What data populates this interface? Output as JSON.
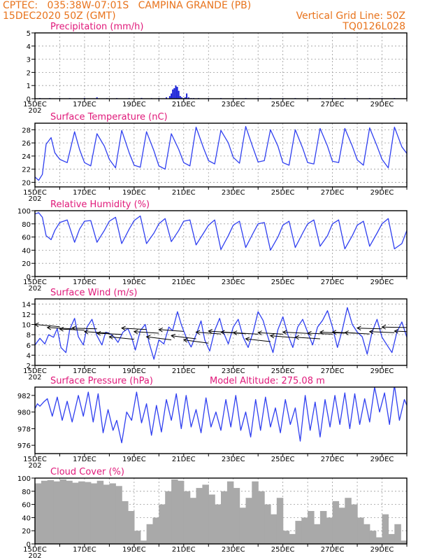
{
  "header": {
    "left_line1": "CPTEC:   035:38W-07:01S   CAMPINA GRANDE (PB)",
    "left_line2": "15DEC2020 50Z (GMT)",
    "right_line1": "Vertical Grid Line: 50Z",
    "right_line2": "TQ0126L028"
  },
  "colors": {
    "header": "#e8731c",
    "title": "#e0197a",
    "line": "#2f3ff0",
    "bar": "#1a22d8",
    "cloud": "#a9a9a9",
    "arrow": "#000000"
  },
  "x_axis": {
    "labels": [
      "15DEC",
      "17DEC",
      "19DEC",
      "21DEC",
      "23DEC",
      "25DEC",
      "27DEC",
      "29DEC"
    ],
    "year_fragment": "202"
  },
  "chart_data": [
    {
      "type": "bar",
      "title": "Precipitation (mm/h)",
      "ylim": [
        0,
        5
      ],
      "yticks": [
        "0",
        "1",
        "2",
        "3",
        "4",
        "5"
      ],
      "grid": true,
      "x_unit": "days since 15DEC",
      "x": [
        0.2,
        0.6,
        1.0,
        1.4,
        2.0,
        2.5,
        2.9,
        3.3,
        3.8,
        4.3,
        4.7,
        5.0,
        5.3,
        5.44,
        5.5,
        5.56,
        5.62,
        5.68,
        5.74,
        5.8,
        5.86,
        5.92,
        6.0,
        6.06,
        6.12,
        6.2,
        6.3,
        6.4,
        6.6,
        7.0,
        7.5,
        8.0,
        8.5,
        9.0,
        9.5,
        10.0,
        10.5,
        11.0,
        11.5,
        12.0,
        12.5,
        13.0,
        13.5,
        14.0,
        14.5
      ],
      "values": [
        0.05,
        0.05,
        0.04,
        0.05,
        0.06,
        0.1,
        0.04,
        0.05,
        0.05,
        0.06,
        0.04,
        0.05,
        0.1,
        0.2,
        0.4,
        0.7,
        0.8,
        1.0,
        0.9,
        0.6,
        0.2,
        0.1,
        0.05,
        0.1,
        0.4,
        0.1,
        0.05,
        0.05,
        0.05,
        0.04,
        0.05,
        0.04,
        0.05,
        0.04,
        0.05,
        0.04,
        0.05,
        0.04,
        0.05,
        0.04,
        0.05,
        0.04,
        0.05,
        0.04,
        0.05
      ]
    },
    {
      "type": "line",
      "title": "Surface Temperature (nC)",
      "ylim": [
        19.3,
        29.0
      ],
      "yticks": [
        "20",
        "22",
        "24",
        "26",
        "28"
      ],
      "grid": true,
      "x_unit": "days since 15DEC",
      "x": [
        0.0,
        0.15,
        0.3,
        0.45,
        0.65,
        0.8,
        1.0,
        1.3,
        1.6,
        1.8,
        2.0,
        2.25,
        2.5,
        2.8,
        3.0,
        3.25,
        3.5,
        3.8,
        4.0,
        4.25,
        4.5,
        4.8,
        5.0,
        5.25,
        5.5,
        5.8,
        6.0,
        6.25,
        6.5,
        6.8,
        7.0,
        7.25,
        7.5,
        7.8,
        8.0,
        8.25,
        8.5,
        8.8,
        9.0,
        9.25,
        9.5,
        9.8,
        10.0,
        10.25,
        10.5,
        10.8,
        11.0,
        11.25,
        11.5,
        11.8,
        12.0,
        12.25,
        12.5,
        12.8,
        13.0,
        13.25,
        13.5,
        13.8,
        14.0,
        14.25,
        14.5,
        14.8,
        15.0
      ],
      "values": [
        20.8,
        20.3,
        21.2,
        25.8,
        26.8,
        24.5,
        23.5,
        23.0,
        27.7,
        25.0,
        23.0,
        22.5,
        27.4,
        25.5,
        23.5,
        22.2,
        27.9,
        24.5,
        22.6,
        22.3,
        27.7,
        24.8,
        22.5,
        22.0,
        27.4,
        25.0,
        23.0,
        22.5,
        28.4,
        25.2,
        23.3,
        22.8,
        27.9,
        26.0,
        23.8,
        22.9,
        28.5,
        25.2,
        23.1,
        23.3,
        28.0,
        25.5,
        23.0,
        22.6,
        28.0,
        25.2,
        23.0,
        22.8,
        28.2,
        25.5,
        23.2,
        23.0,
        28.2,
        25.5,
        23.4,
        22.6,
        28.3,
        25.5,
        23.5,
        22.2,
        28.4,
        25.4,
        24.4
      ]
    },
    {
      "type": "line",
      "title": "Relative Humidity (%)",
      "ylim": [
        0,
        100
      ],
      "yticks": [
        "0",
        "20",
        "40",
        "60",
        "80",
        "100"
      ],
      "grid": true,
      "x_unit": "days since 15DEC",
      "x": [
        0.0,
        0.15,
        0.3,
        0.45,
        0.65,
        0.8,
        1.0,
        1.3,
        1.6,
        1.8,
        2.0,
        2.25,
        2.5,
        2.8,
        3.0,
        3.25,
        3.5,
        3.8,
        4.0,
        4.25,
        4.5,
        4.8,
        5.0,
        5.25,
        5.5,
        5.8,
        6.0,
        6.25,
        6.5,
        6.8,
        7.0,
        7.25,
        7.5,
        7.8,
        8.0,
        8.25,
        8.5,
        8.8,
        9.0,
        9.25,
        9.5,
        9.8,
        10.0,
        10.25,
        10.5,
        10.8,
        11.0,
        11.25,
        11.5,
        11.8,
        12.0,
        12.25,
        12.5,
        12.8,
        13.0,
        13.25,
        13.5,
        13.8,
        14.0,
        14.25,
        14.5,
        14.8,
        15.0
      ],
      "values": [
        95,
        97,
        90,
        62,
        56,
        70,
        82,
        86,
        52,
        72,
        84,
        85,
        52,
        70,
        84,
        90,
        50,
        72,
        85,
        92,
        50,
        66,
        80,
        88,
        53,
        70,
        84,
        86,
        48,
        66,
        78,
        86,
        41,
        62,
        78,
        84,
        44,
        66,
        80,
        82,
        40,
        60,
        78,
        84,
        44,
        66,
        80,
        86,
        46,
        62,
        80,
        86,
        42,
        62,
        78,
        84,
        46,
        66,
        80,
        88,
        42,
        50,
        70
      ]
    },
    {
      "type": "line",
      "title": "Surface Wind (m/s)",
      "ylim": [
        2,
        15
      ],
      "yticks": [
        "2",
        "4",
        "6",
        "8",
        "10",
        "12",
        "14"
      ],
      "grid": true,
      "x_unit": "days since 15DEC",
      "x": [
        0.0,
        0.2,
        0.4,
        0.55,
        0.75,
        0.9,
        1.05,
        1.25,
        1.4,
        1.6,
        1.75,
        1.95,
        2.1,
        2.3,
        2.5,
        2.7,
        2.85,
        3.0,
        3.2,
        3.35,
        3.55,
        3.75,
        3.9,
        4.05,
        4.25,
        4.45,
        4.6,
        4.8,
        5.0,
        5.2,
        5.4,
        5.55,
        5.75,
        5.9,
        6.1,
        6.3,
        6.5,
        6.7,
        6.85,
        7.05,
        7.25,
        7.45,
        7.6,
        7.8,
        8.0,
        8.2,
        8.4,
        8.6,
        8.8,
        9.0,
        9.2,
        9.4,
        9.6,
        9.8,
        10.0,
        10.2,
        10.4,
        10.6,
        10.8,
        11.0,
        11.2,
        11.4,
        11.6,
        11.8,
        12.0,
        12.2,
        12.4,
        12.6,
        12.8,
        13.0,
        13.2,
        13.4,
        13.6,
        13.8,
        14.0,
        14.2,
        14.4,
        14.6,
        14.8,
        15.0
      ],
      "values": [
        6.0,
        7.3,
        6.2,
        8.0,
        7.5,
        9.2,
        5.5,
        4.5,
        9.0,
        11.2,
        7.6,
        6.0,
        9.5,
        11.0,
        7.8,
        6.0,
        8.5,
        8.3,
        7.5,
        6.5,
        8.5,
        9.2,
        7.5,
        5.0,
        8.8,
        10.0,
        6.5,
        3.2,
        7.0,
        6.2,
        9.5,
        8.8,
        12.5,
        10.0,
        7.5,
        5.6,
        8.0,
        10.7,
        7.0,
        4.8,
        8.8,
        11.2,
        8.5,
        6.2,
        9.5,
        11.0,
        7.5,
        5.5,
        8.5,
        12.5,
        10.8,
        7.5,
        4.5,
        9.0,
        11.5,
        8.0,
        5.5,
        9.5,
        11.0,
        8.5,
        6.0,
        9.5,
        10.8,
        12.7,
        9.5,
        5.5,
        9.0,
        13.3,
        10.0,
        8.5,
        7.6,
        4.2,
        8.5,
        11.0,
        7.5,
        6.0,
        4.5,
        8.5,
        10.5,
        7.5
      ]
    },
    {
      "type": "line",
      "title": "Surface Pressure (hPa)",
      "annotation": "Model Altitude: 275.08 m",
      "ylim": [
        975.0,
        983.0
      ],
      "yticks": [
        "976",
        "978",
        "980",
        "982"
      ],
      "grid": false,
      "x_unit": "days since 15DEC",
      "x": [
        0.0,
        0.1,
        0.2,
        0.35,
        0.5,
        0.7,
        0.9,
        1.1,
        1.3,
        1.5,
        1.75,
        1.95,
        2.15,
        2.35,
        2.55,
        2.75,
        2.95,
        3.15,
        3.3,
        3.5,
        3.7,
        3.9,
        4.1,
        4.3,
        4.5,
        4.7,
        4.9,
        5.1,
        5.3,
        5.5,
        5.7,
        5.9,
        6.1,
        6.3,
        6.5,
        6.7,
        6.9,
        7.1,
        7.3,
        7.5,
        7.7,
        7.9,
        8.1,
        8.3,
        8.5,
        8.7,
        8.9,
        9.1,
        9.3,
        9.5,
        9.7,
        9.9,
        10.1,
        10.3,
        10.5,
        10.7,
        10.9,
        11.1,
        11.3,
        11.5,
        11.7,
        11.9,
        12.1,
        12.3,
        12.5,
        12.7,
        12.9,
        13.1,
        13.3,
        13.5,
        13.7,
        13.9,
        14.1,
        14.3,
        14.5,
        14.7,
        14.9,
        15.0
      ],
      "values": [
        980.4,
        981.0,
        980.7,
        981.2,
        981.6,
        979.5,
        981.8,
        979.0,
        981.3,
        978.8,
        982.0,
        979.5,
        982.4,
        978.8,
        982.2,
        977.5,
        980.3,
        977.8,
        979.0,
        976.3,
        980.0,
        979.0,
        982.4,
        978.7,
        981.0,
        977.2,
        980.8,
        977.6,
        981.5,
        979.0,
        982.2,
        978.0,
        982.0,
        978.2,
        980.3,
        977.5,
        981.7,
        978.2,
        980.0,
        977.8,
        981.5,
        978.2,
        982.0,
        977.8,
        980.0,
        977.0,
        981.5,
        977.8,
        981.8,
        978.2,
        980.5,
        977.5,
        981.5,
        978.5,
        980.5,
        976.5,
        982.0,
        977.8,
        981.2,
        977.0,
        981.5,
        978.2,
        982.0,
        978.5,
        982.3,
        978.0,
        982.2,
        978.5,
        981.6,
        978.8,
        983.0,
        980.0,
        982.3,
        978.5,
        983.2,
        979.0,
        981.5,
        980.8
      ]
    },
    {
      "type": "bar",
      "title": "Cloud Cover (%)",
      "ylim": [
        0,
        100
      ],
      "yticks": [
        "0",
        "20",
        "40",
        "60",
        "80",
        "100"
      ],
      "grid": true,
      "x_unit": "days since 15DEC",
      "x": [
        0.0,
        0.25,
        0.5,
        0.75,
        1.0,
        1.25,
        1.5,
        1.75,
        2.0,
        2.25,
        2.5,
        2.75,
        3.0,
        3.25,
        3.5,
        3.75,
        4.0,
        4.25,
        4.5,
        4.75,
        5.0,
        5.25,
        5.5,
        5.75,
        6.0,
        6.25,
        6.5,
        6.75,
        7.0,
        7.25,
        7.5,
        7.75,
        8.0,
        8.25,
        8.5,
        8.75,
        9.0,
        9.25,
        9.5,
        9.75,
        10.0,
        10.25,
        10.5,
        10.75,
        11.0,
        11.25,
        11.5,
        11.75,
        12.0,
        12.25,
        12.5,
        12.75,
        13.0,
        13.25,
        13.5,
        13.75,
        14.0,
        14.25,
        14.5,
        14.75,
        15.0
      ],
      "values": [
        92,
        96,
        97,
        95,
        98,
        96,
        93,
        95,
        94,
        92,
        96,
        90,
        92,
        88,
        65,
        50,
        20,
        5,
        30,
        40,
        60,
        80,
        98,
        96,
        80,
        70,
        85,
        90,
        75,
        60,
        80,
        95,
        85,
        55,
        70,
        95,
        80,
        60,
        45,
        70,
        20,
        15,
        35,
        40,
        50,
        30,
        50,
        40,
        65,
        55,
        70,
        60,
        40,
        30,
        20,
        10,
        45,
        15,
        30,
        5,
        10
      ]
    }
  ],
  "wind_arrows": {
    "x": [
      0.0,
      0.5,
      1.0,
      1.5,
      2.0,
      2.5,
      3.0,
      3.5,
      4.0,
      4.5,
      5.0,
      5.5,
      6.0,
      6.5,
      7.0,
      7.5,
      8.0,
      8.5,
      9.0,
      9.5,
      10.0,
      10.5,
      11.0,
      11.5,
      12.0,
      12.5,
      13.0,
      13.5,
      14.0,
      14.5
    ],
    "y": [
      10.0,
      9.4,
      9.1,
      9.3,
      8.6,
      8.3,
      7.6,
      9.3,
      8.6,
      7.6,
      9.0,
      7.8,
      7.0,
      8.5,
      8.7,
      8.5,
      8.4,
      7.2,
      8.4,
      7.8,
      8.5,
      7.5,
      8.3,
      8.5,
      8.5,
      8.4,
      9.3,
      8.6,
      9.5,
      8.7
    ],
    "dx": [
      1.0,
      1.0,
      1.0,
      1.0,
      1.0,
      1.0,
      1.0,
      1.0,
      1.0,
      1.0,
      1.0,
      1.0,
      1.0,
      1.0,
      1.0,
      1.0,
      1.0,
      1.0,
      1.0,
      1.0,
      1.0,
      1.0,
      1.0,
      1.0,
      1.0,
      1.0,
      1.0,
      1.0,
      1.0,
      1.0
    ],
    "dy": [
      -0.45,
      -0.25,
      -0.2,
      -0.15,
      -0.3,
      -0.25,
      -0.5,
      -0.3,
      -0.3,
      -0.6,
      -0.35,
      -0.6,
      -0.65,
      -0.35,
      -0.3,
      -0.3,
      -0.3,
      -0.55,
      -0.3,
      -0.4,
      -0.25,
      -0.3,
      -0.2,
      -0.2,
      -0.2,
      -0.25,
      -0.15,
      -0.2,
      -0.1,
      -0.2
    ]
  }
}
